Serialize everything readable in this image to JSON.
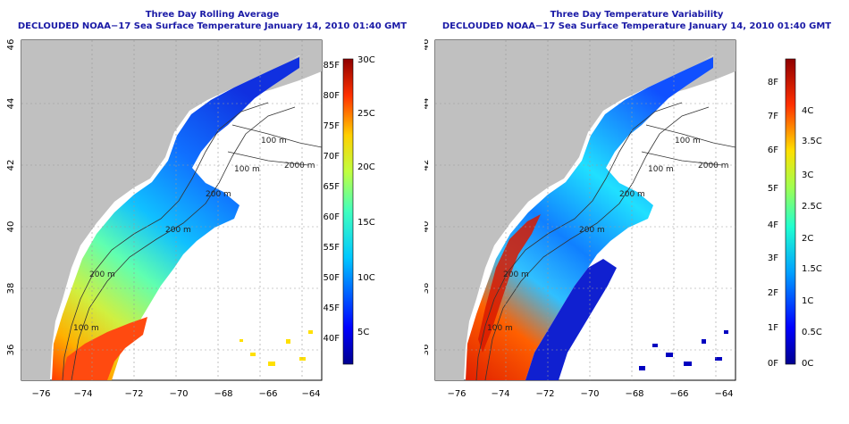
{
  "panels": [
    {
      "title": "Three Day Rolling Average",
      "subtitle": "DECLOUDED NOAA−17 Sea Surface Temperature January 14, 2010 01:40 GMT",
      "colorbar": {
        "left_labels": [
          "85F",
          "80F",
          "75F",
          "70F",
          "65F",
          "60F",
          "55F",
          "50F",
          "45F",
          "40F"
        ],
        "right_labels": [
          "30C",
          "25C",
          "20C",
          "15C",
          "10C",
          "5C"
        ]
      },
      "contours": [
        "100 m",
        "2000 m",
        "100 m",
        "200 m",
        "200 m",
        "200 m",
        "100 m"
      ]
    },
    {
      "title": "Three Day Temperature Variability",
      "subtitle": "DECLOUDED NOAA−17 Sea Surface Temperature January 14, 2010 01:40 GMT",
      "colorbar": {
        "left_labels": [
          "8F",
          "7F",
          "6F",
          "5F",
          "4F",
          "3F",
          "2F",
          "1F",
          "0F"
        ],
        "right_labels": [
          "4C",
          "3.5C",
          "3C",
          "2.5C",
          "2C",
          "1.5C",
          "1C",
          "0.5C",
          "0C"
        ]
      },
      "contours": [
        "100 m",
        "2000 m",
        "100 m",
        "200 m",
        "200 m",
        "200 m",
        "100 m"
      ]
    }
  ],
  "axes": {
    "x_ticks": [
      "−76",
      "−74",
      "−72",
      "−70",
      "−68",
      "−66",
      "−64"
    ],
    "y_ticks": [
      "46",
      "44",
      "42",
      "40",
      "38",
      "36"
    ]
  },
  "colors": {
    "land": "#c0c0c0",
    "ocean": "#ffffff",
    "title": "#1a1aa6"
  }
}
